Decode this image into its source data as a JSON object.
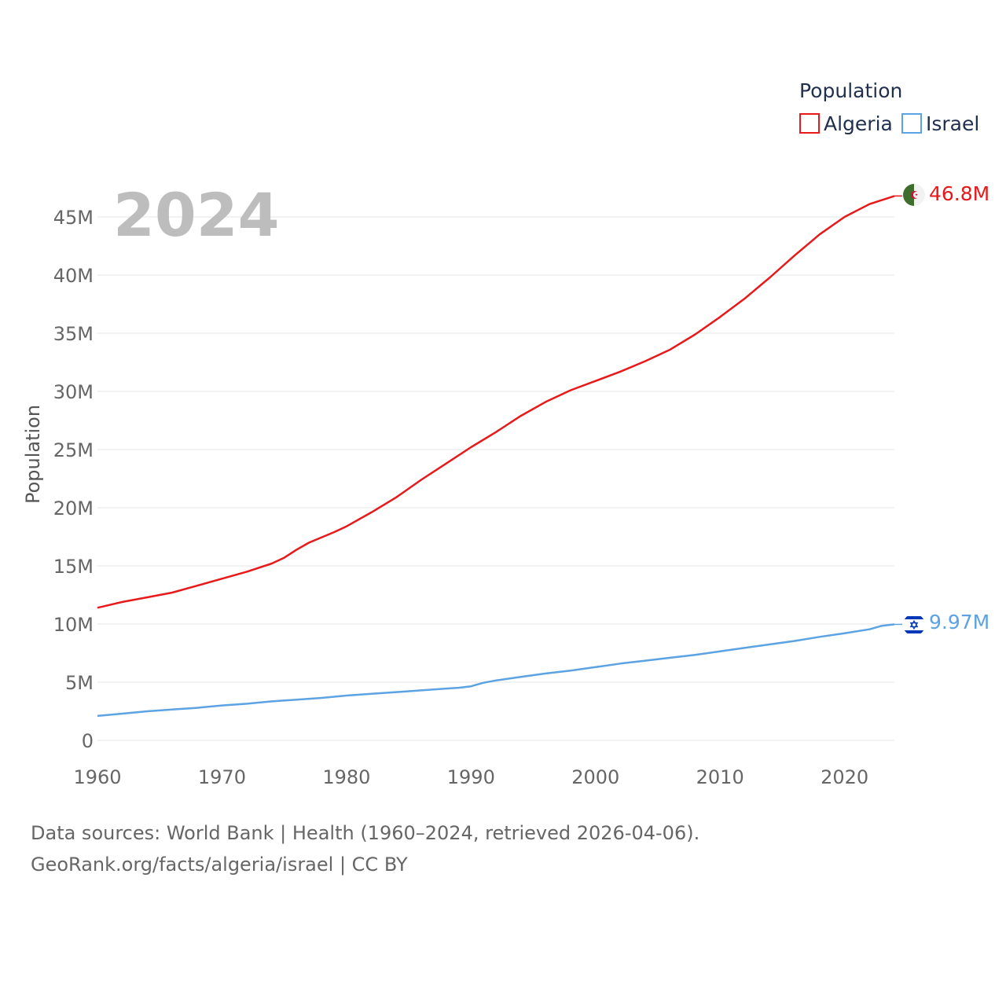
{
  "chart_data": {
    "type": "line",
    "legend": {
      "title": "Population",
      "placement": "top-right"
    },
    "year_label": "2024",
    "ylabel": "Population",
    "xlabel": "",
    "xlim": [
      1960,
      2024
    ],
    "ylim": [
      0,
      48000000
    ],
    "x_ticks": [
      1960,
      1970,
      1980,
      1990,
      2000,
      2010,
      2020
    ],
    "y_ticks": [
      {
        "value": 0,
        "label": "0"
      },
      {
        "value": 5000000,
        "label": "5M"
      },
      {
        "value": 10000000,
        "label": "10M"
      },
      {
        "value": 15000000,
        "label": "15M"
      },
      {
        "value": 20000000,
        "label": "20M"
      },
      {
        "value": 25000000,
        "label": "25M"
      },
      {
        "value": 30000000,
        "label": "30M"
      },
      {
        "value": 35000000,
        "label": "35M"
      },
      {
        "value": 40000000,
        "label": "40M"
      },
      {
        "value": 45000000,
        "label": "45M"
      }
    ],
    "grid": true,
    "series": [
      {
        "name": "Algeria",
        "color": "#e8191a",
        "flag": "algeria-flag-icon",
        "end_label": "46.8M",
        "points": [
          [
            1960,
            11400000
          ],
          [
            1962,
            11900000
          ],
          [
            1964,
            12300000
          ],
          [
            1966,
            12700000
          ],
          [
            1968,
            13300000
          ],
          [
            1970,
            13900000
          ],
          [
            1972,
            14500000
          ],
          [
            1974,
            15200000
          ],
          [
            1975,
            15700000
          ],
          [
            1976,
            16400000
          ],
          [
            1977,
            17000000
          ],
          [
            1979,
            17900000
          ],
          [
            1980,
            18400000
          ],
          [
            1982,
            19600000
          ],
          [
            1984,
            20900000
          ],
          [
            1986,
            22400000
          ],
          [
            1988,
            23800000
          ],
          [
            1990,
            25200000
          ],
          [
            1992,
            26500000
          ],
          [
            1994,
            27900000
          ],
          [
            1996,
            29100000
          ],
          [
            1998,
            30100000
          ],
          [
            2000,
            30900000
          ],
          [
            2002,
            31700000
          ],
          [
            2004,
            32600000
          ],
          [
            2006,
            33600000
          ],
          [
            2008,
            34900000
          ],
          [
            2010,
            36400000
          ],
          [
            2012,
            38000000
          ],
          [
            2014,
            39800000
          ],
          [
            2016,
            41700000
          ],
          [
            2018,
            43500000
          ],
          [
            2020,
            45000000
          ],
          [
            2022,
            46100000
          ],
          [
            2024,
            46800000
          ]
        ]
      },
      {
        "name": "Israel",
        "color": "#5ba3e3",
        "flag": "israel-flag-icon",
        "end_label": "9.97M",
        "points": [
          [
            1960,
            2100000
          ],
          [
            1962,
            2300000
          ],
          [
            1964,
            2500000
          ],
          [
            1966,
            2650000
          ],
          [
            1968,
            2800000
          ],
          [
            1970,
            3000000
          ],
          [
            1972,
            3150000
          ],
          [
            1974,
            3350000
          ],
          [
            1976,
            3500000
          ],
          [
            1978,
            3650000
          ],
          [
            1980,
            3850000
          ],
          [
            1982,
            4000000
          ],
          [
            1984,
            4150000
          ],
          [
            1986,
            4300000
          ],
          [
            1988,
            4450000
          ],
          [
            1989,
            4520000
          ],
          [
            1990,
            4650000
          ],
          [
            1991,
            4950000
          ],
          [
            1992,
            5150000
          ],
          [
            1994,
            5450000
          ],
          [
            1996,
            5750000
          ],
          [
            1998,
            6000000
          ],
          [
            2000,
            6300000
          ],
          [
            2002,
            6600000
          ],
          [
            2004,
            6850000
          ],
          [
            2006,
            7100000
          ],
          [
            2008,
            7350000
          ],
          [
            2010,
            7650000
          ],
          [
            2012,
            7950000
          ],
          [
            2014,
            8250000
          ],
          [
            2016,
            8550000
          ],
          [
            2018,
            8900000
          ],
          [
            2020,
            9200000
          ],
          [
            2022,
            9550000
          ],
          [
            2023,
            9850000
          ],
          [
            2024,
            9970000
          ]
        ]
      }
    ]
  },
  "source": {
    "line1": "Data sources: World Bank | Health (1960–2024, retrieved 2026-04-06).",
    "line2": "GeoRank.org/facts/algeria/israel | CC BY"
  }
}
